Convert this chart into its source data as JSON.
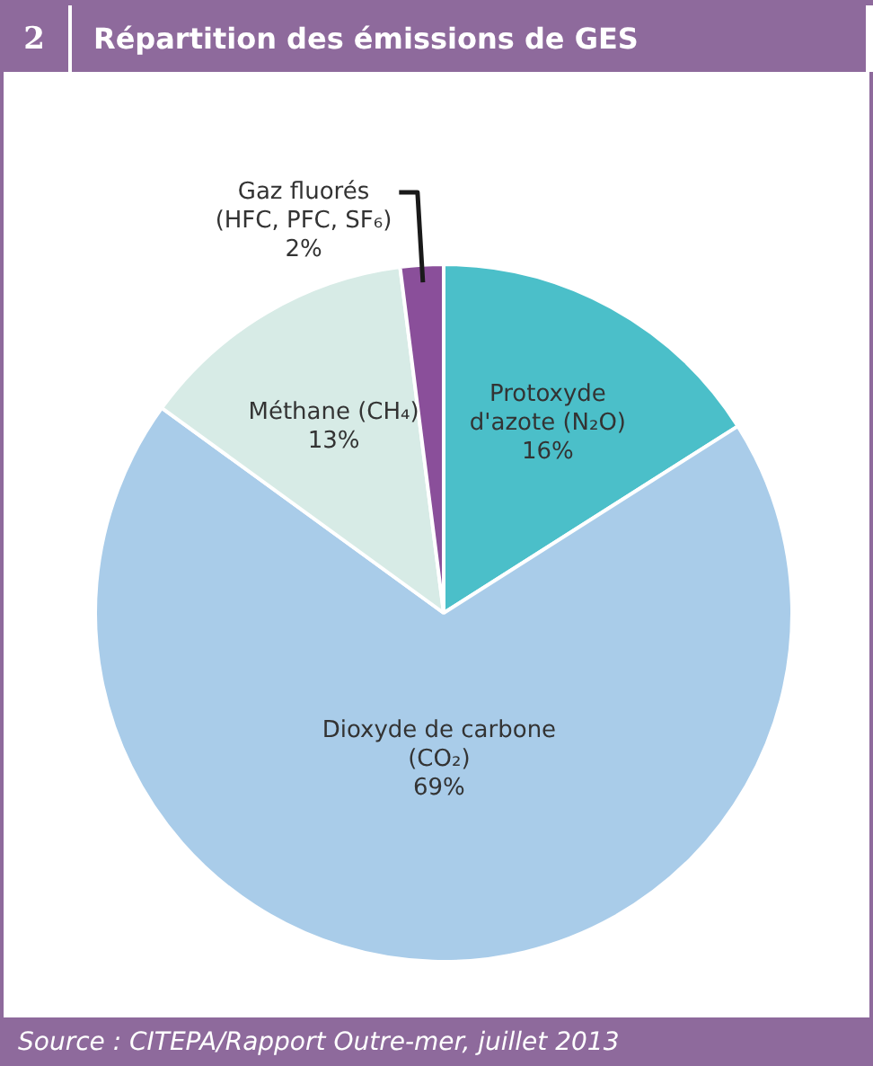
{
  "chart_data": {
    "type": "pie",
    "title": "Répartition des émissions de GES",
    "categories": [
      "Protoxyde d'azote (N₂O)",
      "Dioxyde de carbone (CO₂)",
      "Méthane (CH₄)",
      "Gaz fluorés (HFC, PFC, SF₆)"
    ],
    "values": [
      16,
      69,
      13,
      2
    ],
    "value_labels": [
      "16%",
      "69%",
      "13%",
      "2%"
    ],
    "colors": [
      "#4bbfc9",
      "#a9cce9",
      "#d7ebe6",
      "#8a4f9a"
    ],
    "legend": false,
    "annotations": [
      "2",
      "Source : CITEPA/Rapport Outre-mer, juillet 2013"
    ]
  }
}
